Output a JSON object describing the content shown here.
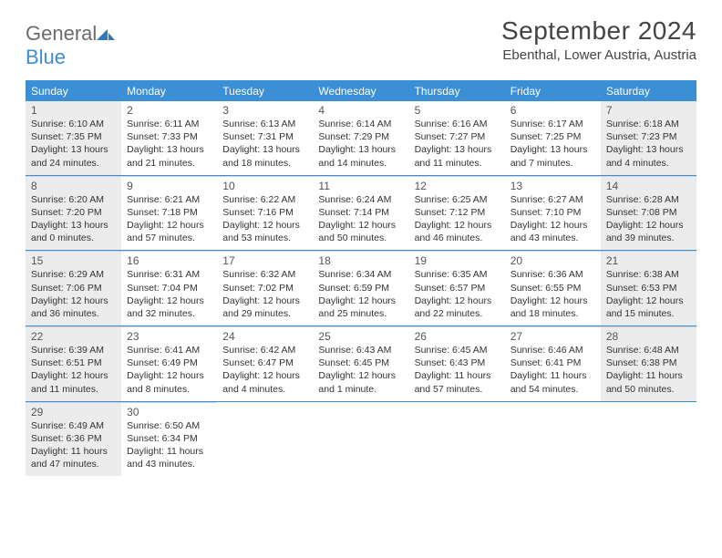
{
  "logo": {
    "text1": "General",
    "text2": "Blue"
  },
  "title": "September 2024",
  "location": "Ebenthal, Lower Austria, Austria",
  "colors": {
    "header_bg": "#3b8fd4",
    "shade": "#ececec",
    "rule": "#3b8fd4"
  },
  "day_headers": [
    "Sunday",
    "Monday",
    "Tuesday",
    "Wednesday",
    "Thursday",
    "Friday",
    "Saturday"
  ],
  "weeks": [
    [
      {
        "n": "1",
        "shaded": true,
        "sr": "Sunrise: 6:10 AM",
        "ss": "Sunset: 7:35 PM",
        "d1": "Daylight: 13 hours",
        "d2": "and 24 minutes."
      },
      {
        "n": "2",
        "shaded": false,
        "sr": "Sunrise: 6:11 AM",
        "ss": "Sunset: 7:33 PM",
        "d1": "Daylight: 13 hours",
        "d2": "and 21 minutes."
      },
      {
        "n": "3",
        "shaded": false,
        "sr": "Sunrise: 6:13 AM",
        "ss": "Sunset: 7:31 PM",
        "d1": "Daylight: 13 hours",
        "d2": "and 18 minutes."
      },
      {
        "n": "4",
        "shaded": false,
        "sr": "Sunrise: 6:14 AM",
        "ss": "Sunset: 7:29 PM",
        "d1": "Daylight: 13 hours",
        "d2": "and 14 minutes."
      },
      {
        "n": "5",
        "shaded": false,
        "sr": "Sunrise: 6:16 AM",
        "ss": "Sunset: 7:27 PM",
        "d1": "Daylight: 13 hours",
        "d2": "and 11 minutes."
      },
      {
        "n": "6",
        "shaded": false,
        "sr": "Sunrise: 6:17 AM",
        "ss": "Sunset: 7:25 PM",
        "d1": "Daylight: 13 hours",
        "d2": "and 7 minutes."
      },
      {
        "n": "7",
        "shaded": true,
        "sr": "Sunrise: 6:18 AM",
        "ss": "Sunset: 7:23 PM",
        "d1": "Daylight: 13 hours",
        "d2": "and 4 minutes."
      }
    ],
    [
      {
        "n": "8",
        "shaded": true,
        "sr": "Sunrise: 6:20 AM",
        "ss": "Sunset: 7:20 PM",
        "d1": "Daylight: 13 hours",
        "d2": "and 0 minutes."
      },
      {
        "n": "9",
        "shaded": false,
        "sr": "Sunrise: 6:21 AM",
        "ss": "Sunset: 7:18 PM",
        "d1": "Daylight: 12 hours",
        "d2": "and 57 minutes."
      },
      {
        "n": "10",
        "shaded": false,
        "sr": "Sunrise: 6:22 AM",
        "ss": "Sunset: 7:16 PM",
        "d1": "Daylight: 12 hours",
        "d2": "and 53 minutes."
      },
      {
        "n": "11",
        "shaded": false,
        "sr": "Sunrise: 6:24 AM",
        "ss": "Sunset: 7:14 PM",
        "d1": "Daylight: 12 hours",
        "d2": "and 50 minutes."
      },
      {
        "n": "12",
        "shaded": false,
        "sr": "Sunrise: 6:25 AM",
        "ss": "Sunset: 7:12 PM",
        "d1": "Daylight: 12 hours",
        "d2": "and 46 minutes."
      },
      {
        "n": "13",
        "shaded": false,
        "sr": "Sunrise: 6:27 AM",
        "ss": "Sunset: 7:10 PM",
        "d1": "Daylight: 12 hours",
        "d2": "and 43 minutes."
      },
      {
        "n": "14",
        "shaded": true,
        "sr": "Sunrise: 6:28 AM",
        "ss": "Sunset: 7:08 PM",
        "d1": "Daylight: 12 hours",
        "d2": "and 39 minutes."
      }
    ],
    [
      {
        "n": "15",
        "shaded": true,
        "sr": "Sunrise: 6:29 AM",
        "ss": "Sunset: 7:06 PM",
        "d1": "Daylight: 12 hours",
        "d2": "and 36 minutes."
      },
      {
        "n": "16",
        "shaded": false,
        "sr": "Sunrise: 6:31 AM",
        "ss": "Sunset: 7:04 PM",
        "d1": "Daylight: 12 hours",
        "d2": "and 32 minutes."
      },
      {
        "n": "17",
        "shaded": false,
        "sr": "Sunrise: 6:32 AM",
        "ss": "Sunset: 7:02 PM",
        "d1": "Daylight: 12 hours",
        "d2": "and 29 minutes."
      },
      {
        "n": "18",
        "shaded": false,
        "sr": "Sunrise: 6:34 AM",
        "ss": "Sunset: 6:59 PM",
        "d1": "Daylight: 12 hours",
        "d2": "and 25 minutes."
      },
      {
        "n": "19",
        "shaded": false,
        "sr": "Sunrise: 6:35 AM",
        "ss": "Sunset: 6:57 PM",
        "d1": "Daylight: 12 hours",
        "d2": "and 22 minutes."
      },
      {
        "n": "20",
        "shaded": false,
        "sr": "Sunrise: 6:36 AM",
        "ss": "Sunset: 6:55 PM",
        "d1": "Daylight: 12 hours",
        "d2": "and 18 minutes."
      },
      {
        "n": "21",
        "shaded": true,
        "sr": "Sunrise: 6:38 AM",
        "ss": "Sunset: 6:53 PM",
        "d1": "Daylight: 12 hours",
        "d2": "and 15 minutes."
      }
    ],
    [
      {
        "n": "22",
        "shaded": true,
        "sr": "Sunrise: 6:39 AM",
        "ss": "Sunset: 6:51 PM",
        "d1": "Daylight: 12 hours",
        "d2": "and 11 minutes."
      },
      {
        "n": "23",
        "shaded": false,
        "sr": "Sunrise: 6:41 AM",
        "ss": "Sunset: 6:49 PM",
        "d1": "Daylight: 12 hours",
        "d2": "and 8 minutes."
      },
      {
        "n": "24",
        "shaded": false,
        "sr": "Sunrise: 6:42 AM",
        "ss": "Sunset: 6:47 PM",
        "d1": "Daylight: 12 hours",
        "d2": "and 4 minutes."
      },
      {
        "n": "25",
        "shaded": false,
        "sr": "Sunrise: 6:43 AM",
        "ss": "Sunset: 6:45 PM",
        "d1": "Daylight: 12 hours",
        "d2": "and 1 minute."
      },
      {
        "n": "26",
        "shaded": false,
        "sr": "Sunrise: 6:45 AM",
        "ss": "Sunset: 6:43 PM",
        "d1": "Daylight: 11 hours",
        "d2": "and 57 minutes."
      },
      {
        "n": "27",
        "shaded": false,
        "sr": "Sunrise: 6:46 AM",
        "ss": "Sunset: 6:41 PM",
        "d1": "Daylight: 11 hours",
        "d2": "and 54 minutes."
      },
      {
        "n": "28",
        "shaded": true,
        "sr": "Sunrise: 6:48 AM",
        "ss": "Sunset: 6:38 PM",
        "d1": "Daylight: 11 hours",
        "d2": "and 50 minutes."
      }
    ],
    [
      {
        "n": "29",
        "shaded": true,
        "sr": "Sunrise: 6:49 AM",
        "ss": "Sunset: 6:36 PM",
        "d1": "Daylight: 11 hours",
        "d2": "and 47 minutes."
      },
      {
        "n": "30",
        "shaded": false,
        "sr": "Sunrise: 6:50 AM",
        "ss": "Sunset: 6:34 PM",
        "d1": "Daylight: 11 hours",
        "d2": "and 43 minutes."
      },
      null,
      null,
      null,
      null,
      null
    ]
  ]
}
